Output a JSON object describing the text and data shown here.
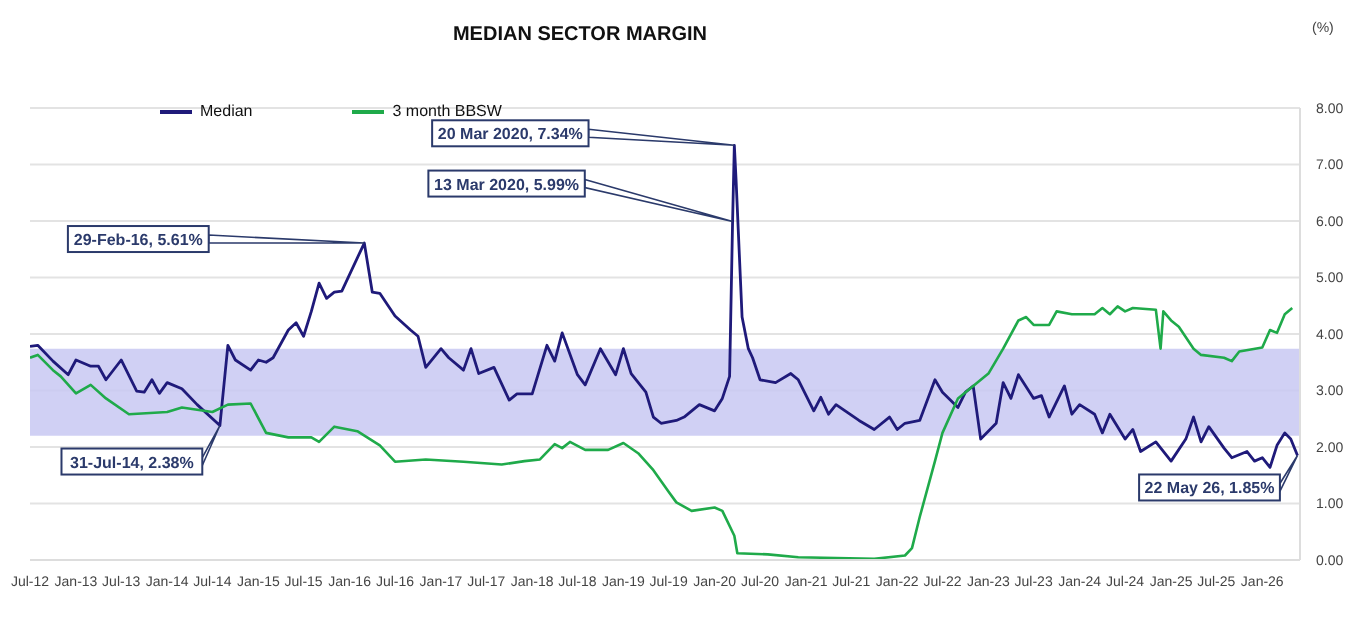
{
  "chart_data": {
    "type": "line",
    "title": "MEDIAN SECTOR MARGIN",
    "ylabel": "(%)",
    "xlim": [
      "2012-07",
      "2026-06"
    ],
    "xticks": [
      {
        "value": "2012-07",
        "label": "Jul-12"
      },
      {
        "value": "2013-01",
        "label": "Jan-13"
      },
      {
        "value": "2013-07",
        "label": "Jul-13"
      },
      {
        "value": "2014-01",
        "label": "Jan-14"
      },
      {
        "value": "2014-07",
        "label": "Jul-14"
      },
      {
        "value": "2015-01",
        "label": "Jan-15"
      },
      {
        "value": "2015-07",
        "label": "Jul-15"
      },
      {
        "value": "2016-01",
        "label": "Jan-16"
      },
      {
        "value": "2016-07",
        "label": "Jul-16"
      },
      {
        "value": "2017-01",
        "label": "Jan-17"
      },
      {
        "value": "2017-07",
        "label": "Jul-17"
      },
      {
        "value": "2018-01",
        "label": "Jan-18"
      },
      {
        "value": "2018-07",
        "label": "Jul-18"
      },
      {
        "value": "2019-01",
        "label": "Jan-19"
      },
      {
        "value": "2019-07",
        "label": "Jul-19"
      },
      {
        "value": "2020-01",
        "label": "Jan-20"
      },
      {
        "value": "2020-07",
        "label": "Jul-20"
      },
      {
        "value": "2021-01",
        "label": "Jan-21"
      },
      {
        "value": "2021-07",
        "label": "Jul-21"
      },
      {
        "value": "2022-01",
        "label": "Jan-22"
      },
      {
        "value": "2022-07",
        "label": "Jul-22"
      },
      {
        "value": "2023-01",
        "label": "Jan-23"
      },
      {
        "value": "2023-07",
        "label": "Jul-23"
      },
      {
        "value": "2024-01",
        "label": "Jan-24"
      },
      {
        "value": "2024-07",
        "label": "Jul-24"
      },
      {
        "value": "2025-01",
        "label": "Jan-25"
      },
      {
        "value": "2025-07",
        "label": "Jul-25"
      },
      {
        "value": "2026-01",
        "label": "Jan-26"
      }
    ],
    "ylim": [
      0,
      8
    ],
    "yticks": [
      {
        "value": 0,
        "label": "0.00"
      },
      {
        "value": 1,
        "label": "1.00"
      },
      {
        "value": 2,
        "label": "2.00"
      },
      {
        "value": 3,
        "label": "3.00"
      },
      {
        "value": 4,
        "label": "4.00"
      },
      {
        "value": 5,
        "label": "5.00"
      },
      {
        "value": 6,
        "label": "6.00"
      },
      {
        "value": 7,
        "label": "7.00"
      },
      {
        "value": 8,
        "label": "8.00"
      }
    ],
    "grid": "y",
    "legend": "top left",
    "marker": "none",
    "line_style": "solid",
    "bands": [
      {
        "axis": "y",
        "from": 2.2,
        "to": 3.74,
        "color": "#c8c8f2"
      }
    ],
    "annotations": [
      {
        "text": "20 Mar 2020, 7.34%",
        "x": "2020-03-20",
        "y": 7.34
      },
      {
        "text": "13 Mar 2020, 5.99%",
        "x": "2020-03-13",
        "y": 5.99
      },
      {
        "text": "29-Feb-16, 5.61%",
        "x": "2016-02-29",
        "y": 5.61
      },
      {
        "text": "31-Jul-14, 2.38%",
        "x": "2014-07-31",
        "y": 2.38
      },
      {
        "text": "22 May 26, 1.85%",
        "x": "2026-05-22",
        "y": 1.85
      }
    ],
    "series": [
      {
        "name": "Median",
        "color": "#1f1a7a",
        "x": [
          "2012-07",
          "2012-08",
          "2012-10",
          "2012-12",
          "2013-01",
          "2013-03",
          "2013-04",
          "2013-05",
          "2013-07",
          "2013-09",
          "2013-10",
          "2013-11",
          "2013-12",
          "2014-01",
          "2014-03",
          "2014-05",
          "2014-07-31",
          "2014-09",
          "2014-10",
          "2014-12",
          "2015-01",
          "2015-02",
          "2015-03",
          "2015-05",
          "2015-06",
          "2015-07",
          "2015-08",
          "2015-09",
          "2015-10",
          "2015-11",
          "2015-12",
          "2016-02-29",
          "2016-04",
          "2016-05",
          "2016-07",
          "2016-09",
          "2016-10",
          "2016-11",
          "2017-01",
          "2017-02",
          "2017-04",
          "2017-05",
          "2017-06",
          "2017-08",
          "2017-10",
          "2017-11",
          "2018-01",
          "2018-03",
          "2018-04",
          "2018-05",
          "2018-07",
          "2018-08",
          "2018-10",
          "2018-12",
          "2019-01",
          "2019-02",
          "2019-04",
          "2019-05",
          "2019-06",
          "2019-08",
          "2019-09",
          "2019-11",
          "2020-01",
          "2020-02",
          "2020-03-01",
          "2020-03-13",
          "2020-03-20",
          "2020-03-27",
          "2020-04-20",
          "2020-05-15",
          "2020-06",
          "2020-07",
          "2020-09",
          "2020-11",
          "2020-12",
          "2021-02",
          "2021-03",
          "2021-04",
          "2021-05",
          "2021-08",
          "2021-10",
          "2021-12",
          "2022-01",
          "2022-02",
          "2022-04",
          "2022-06",
          "2022-07",
          "2022-09",
          "2022-10",
          "2022-11",
          "2022-12",
          "2023-02",
          "2023-03",
          "2023-04",
          "2023-05",
          "2023-07",
          "2023-08",
          "2023-09",
          "2023-11",
          "2023-12",
          "2024-01",
          "2024-03",
          "2024-04",
          "2024-05",
          "2024-07",
          "2024-08",
          "2024-09",
          "2024-11",
          "2025-01",
          "2025-03",
          "2025-04",
          "2025-05",
          "2025-06",
          "2025-08",
          "2025-09",
          "2025-11",
          "2025-12",
          "2026-01",
          "2026-02",
          "2026-03",
          "2026-04",
          "2026-04-25",
          "2026-05-22"
        ],
        "values": [
          3.78,
          3.8,
          3.52,
          3.28,
          3.54,
          3.43,
          3.43,
          3.19,
          3.54,
          2.99,
          2.97,
          3.19,
          2.95,
          3.14,
          3.03,
          2.75,
          2.38,
          3.8,
          3.54,
          3.36,
          3.54,
          3.5,
          3.58,
          4.07,
          4.2,
          3.96,
          4.4,
          4.9,
          4.63,
          4.74,
          4.76,
          5.61,
          4.74,
          4.72,
          4.32,
          4.07,
          3.96,
          3.41,
          3.74,
          3.58,
          3.36,
          3.74,
          3.3,
          3.41,
          2.83,
          2.94,
          2.94,
          3.8,
          3.52,
          4.02,
          3.28,
          3.1,
          3.74,
          3.28,
          3.74,
          3.3,
          2.97,
          2.53,
          2.42,
          2.47,
          2.53,
          2.75,
          2.64,
          2.86,
          3.25,
          5.99,
          7.34,
          6.72,
          4.3,
          3.74,
          3.58,
          3.19,
          3.14,
          3.3,
          3.19,
          2.64,
          2.88,
          2.58,
          2.75,
          2.47,
          2.31,
          2.53,
          2.31,
          2.42,
          2.47,
          3.19,
          2.97,
          2.7,
          2.97,
          3.08,
          2.14,
          2.42,
          3.14,
          2.86,
          3.28,
          2.86,
          2.91,
          2.53,
          3.08,
          2.58,
          2.75,
          2.58,
          2.25,
          2.58,
          2.14,
          2.31,
          1.92,
          2.09,
          1.75,
          2.14,
          2.53,
          2.09,
          2.36,
          1.98,
          1.81,
          1.92,
          1.75,
          1.81,
          1.64,
          2.03,
          2.25,
          2.14,
          1.85
        ]
      },
      {
        "name": "3 month BBSW",
        "color": "#1faa4a",
        "x": [
          "2012-07",
          "2012-08",
          "2012-10",
          "2012-11",
          "2013-01",
          "2013-03",
          "2013-05",
          "2013-08",
          "2014-01",
          "2014-03",
          "2014-07",
          "2014-09",
          "2014-12",
          "2015-02",
          "2015-05",
          "2015-08",
          "2015-09",
          "2015-11",
          "2016-02",
          "2016-05",
          "2016-07",
          "2016-11",
          "2017-04",
          "2017-09",
          "2017-12",
          "2018-02",
          "2018-04",
          "2018-05",
          "2018-06",
          "2018-08",
          "2018-11",
          "2019-01",
          "2019-03",
          "2019-05",
          "2019-07",
          "2019-08",
          "2019-10",
          "2020-01",
          "2020-02",
          "2020-03-20",
          "2020-04",
          "2020-08",
          "2020-12",
          "2021-10",
          "2022-02",
          "2022-03",
          "2022-04",
          "2022-06",
          "2022-07",
          "2022-09",
          "2022-11",
          "2023-01",
          "2023-03",
          "2023-05",
          "2023-06",
          "2023-07",
          "2023-09",
          "2023-10",
          "2023-12",
          "2024-03",
          "2024-04",
          "2024-05",
          "2024-06",
          "2024-07",
          "2024-08",
          "2024-11",
          "2024-11-20",
          "2024-12",
          "2025-01",
          "2025-02",
          "2025-04",
          "2025-05",
          "2025-08",
          "2025-09",
          "2025-10",
          "2026-01",
          "2026-02",
          "2026-03",
          "2026-04",
          "2026-05"
        ],
        "values": [
          3.58,
          3.63,
          3.36,
          3.25,
          2.95,
          3.1,
          2.86,
          2.58,
          2.62,
          2.7,
          2.62,
          2.75,
          2.77,
          2.25,
          2.17,
          2.17,
          2.09,
          2.36,
          2.28,
          2.03,
          1.74,
          1.78,
          1.74,
          1.69,
          1.75,
          1.78,
          2.05,
          1.98,
          2.09,
          1.95,
          1.95,
          2.07,
          1.89,
          1.59,
          1.21,
          1.02,
          0.87,
          0.93,
          0.87,
          0.43,
          0.12,
          0.1,
          0.05,
          0.02,
          0.08,
          0.21,
          0.76,
          1.75,
          2.25,
          2.86,
          3.08,
          3.3,
          3.74,
          4.24,
          4.3,
          4.16,
          4.16,
          4.4,
          4.35,
          4.35,
          4.46,
          4.35,
          4.49,
          4.4,
          4.46,
          4.43,
          3.74,
          4.4,
          4.24,
          4.13,
          3.74,
          3.63,
          3.58,
          3.52,
          3.69,
          3.76,
          4.07,
          4.02,
          4.35,
          4.46
        ]
      }
    ]
  }
}
